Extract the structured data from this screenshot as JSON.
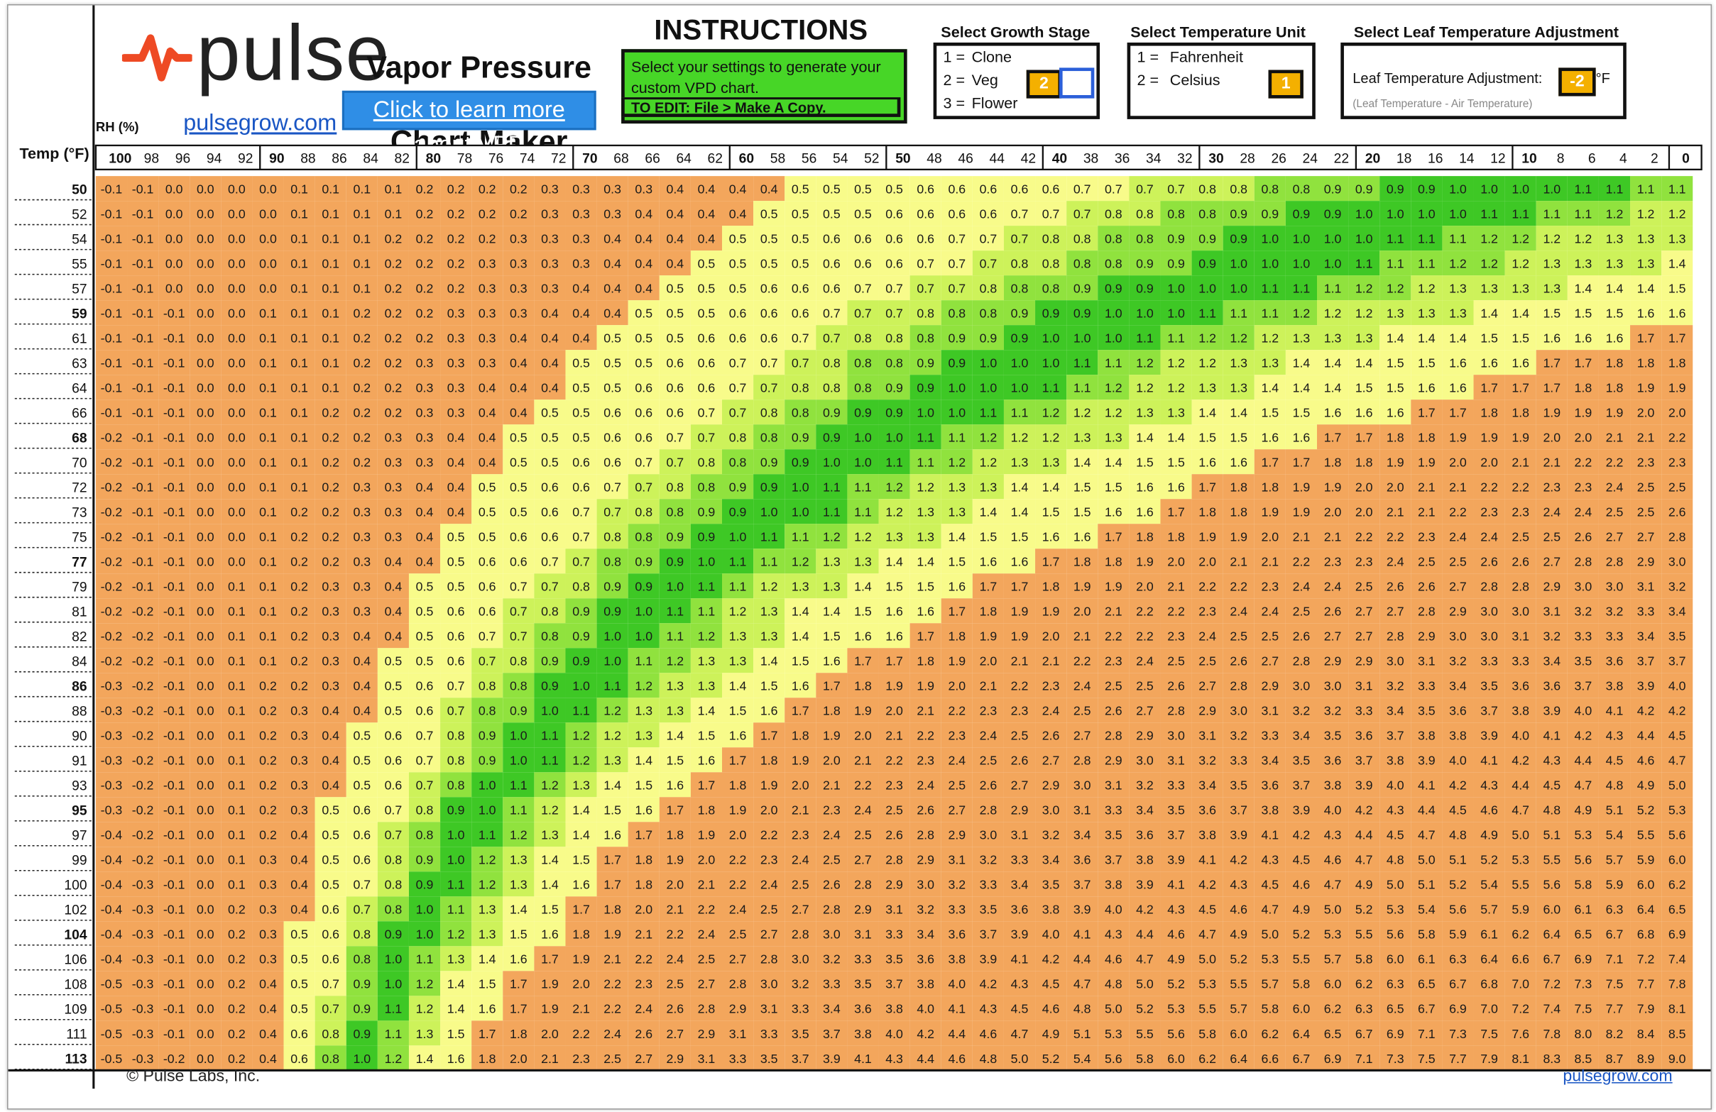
{
  "brand": {
    "name": "pulse",
    "link": "pulsegrow.com",
    "colors": {
      "logo_pulse": "#ee4a24"
    }
  },
  "chart_title": [
    "Vapor Pressure Deficit",
    "Chart Maker"
  ],
  "learn_more_button": "Click to learn more about VPD",
  "instructions": {
    "heading": "INSTRUCTIONS",
    "text": "Select your settings to generate your custom VPD chart.",
    "edit_note": "TO EDIT: File > Make A Copy."
  },
  "growth_stage": {
    "title": "Select Growth Stage",
    "options": [
      {
        "num": "1 =",
        "label": "Clone"
      },
      {
        "num": "2 =",
        "label": "Veg"
      },
      {
        "num": "3 =",
        "label": "Flower"
      }
    ],
    "selected": "2"
  },
  "temperature_unit": {
    "title": "Select Temperature Unit",
    "options": [
      {
        "num": "1 =",
        "label": "Fahrenheit"
      },
      {
        "num": "2 =",
        "label": "Celsius"
      }
    ],
    "selected": "1"
  },
  "leaf_adjustment": {
    "title": "Select Leaf Temperature Adjustment",
    "label": "Leaf Temperature Adjustment:",
    "value": "-2",
    "unit": "°F",
    "note": "(Leaf Temperature - Air Temperature)"
  },
  "footer": {
    "copyright": "© Pulse Labs, Inc.",
    "link": "pulsegrow.com"
  },
  "chart_data": {
    "type": "heatmap",
    "title": "Vapor Pressure Deficit Chart Maker",
    "xlabel": "RH (%)",
    "ylabel": "Temp (°F)",
    "x": [
      100,
      98,
      96,
      94,
      92,
      90,
      88,
      86,
      84,
      82,
      80,
      78,
      76,
      74,
      72,
      70,
      68,
      66,
      64,
      62,
      60,
      58,
      56,
      54,
      52,
      50,
      48,
      46,
      44,
      42,
      40,
      38,
      36,
      34,
      32,
      30,
      28,
      26,
      24,
      22,
      20,
      18,
      16,
      14,
      12,
      10,
      8,
      6,
      4,
      2,
      0
    ],
    "y": [
      50,
      52,
      54,
      55,
      57,
      59,
      61,
      63,
      64,
      66,
      68,
      70,
      72,
      73,
      75,
      77,
      79,
      81,
      82,
      84,
      86,
      88,
      90,
      91,
      93,
      95,
      97,
      99,
      100,
      102,
      104,
      106,
      108,
      109,
      111,
      113
    ],
    "leaf_offset_f": -2,
    "value_unit": "kPa",
    "colors": {
      "low": "#f3a65c",
      "transition": "#f8fb8a",
      "edge": "#cdf25a",
      "mid": "#90e23e",
      "optimal": "#3ec825"
    },
    "optimal_range": [
      0.9,
      1.1
    ],
    "values_rule": "VPD = SVP(T_leaf) - RH/100 * SVP(T_air); T_leaf = T_air - 2 F; shown to 1 decimal"
  }
}
